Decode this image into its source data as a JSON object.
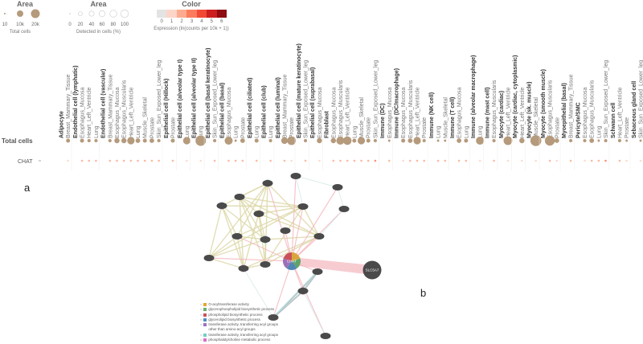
{
  "legend": {
    "total_cells": {
      "title": "Area",
      "ticks": [
        "10",
        "10k",
        "20k"
      ],
      "caption": "Total cells",
      "color": "#b59a7c"
    },
    "detected": {
      "title": "Area",
      "ticks": [
        "0",
        "20",
        "40",
        "60",
        "80",
        "100"
      ],
      "caption": "Detected in cells (%)"
    },
    "expression": {
      "title": "Color",
      "ticks": [
        "0",
        "1",
        "2",
        "3",
        "4",
        "5",
        "6"
      ],
      "caption": "Expression (ln(counts per 10k + 1))",
      "colors": [
        "#e3e3e3",
        "#fcd5c8",
        "#fcab91",
        "#fb7c5c",
        "#f04a36",
        "#cc1f1f",
        "#8e0c12"
      ]
    }
  },
  "rows": {
    "total_cells": "Total cells",
    "gene": "CHAT"
  },
  "columns": [
    {
      "label": "Adipocyte",
      "header": true
    },
    {
      "label": "Breast_Mammary_Tissue",
      "total": 3,
      "expr": 1
    },
    {
      "label": "Endothelial cell (lymphatic)",
      "header": true
    },
    {
      "label": "Esophagus_Mucosa",
      "total": 3,
      "expr": 1.5
    },
    {
      "label": "Heart_Left_Ventricle",
      "total": 2,
      "expr": 1.5
    },
    {
      "label": "Lung",
      "total": 2,
      "expr": 1.5
    },
    {
      "label": "Endothelial cell (vascular)",
      "header": true
    },
    {
      "label": "Breast_Mammary_Tissue",
      "total": 2,
      "expr": 1.5
    },
    {
      "label": "Esophagus_Mucosa",
      "total": 5,
      "expr": 1.5
    },
    {
      "label": "Esophagus_Muscularis",
      "total": 5,
      "expr": 1.5
    },
    {
      "label": "Heart_Left_Ventricle",
      "total": 10,
      "expr": 1.5
    },
    {
      "label": "Lung",
      "total": 4,
      "expr": 2
    },
    {
      "label": "Muscle_Skeletal",
      "total": 3,
      "expr": 1.5
    },
    {
      "label": "Prostate",
      "total": 4,
      "expr": 1.5
    },
    {
      "label": "Skin_Sun_Exposed_Lower_leg",
      "total": 2,
      "expr": 1.5
    },
    {
      "label": "Epithelial cell (Hillock)",
      "header": true
    },
    {
      "label": "Prostate",
      "total": 3,
      "expr": 1.5
    },
    {
      "label": "Epithelial cell (alveolar type I)",
      "header": true
    },
    {
      "label": "Lung",
      "total": 10,
      "expr": 1
    },
    {
      "label": "Epithelial cell (alveolar type II)",
      "header": true
    },
    {
      "label": "Lung",
      "total": 20,
      "expr": 1
    },
    {
      "label": "Epithelial cell (basal keratinocyte)",
      "header": true
    },
    {
      "label": "Skin_Sun_Exposed_Lower_leg",
      "total": 2,
      "expr": 2
    },
    {
      "label": "Epithelial cell (basal)",
      "header": true
    },
    {
      "label": "Esophagus_Mucosa",
      "total": 12,
      "expr": 1.5
    },
    {
      "label": "Lung",
      "total": 1,
      "expr": 1.5
    },
    {
      "label": "Prostate",
      "total": 4,
      "expr": 1.5
    },
    {
      "label": "Epithelial cell (ciliated)",
      "header": true
    },
    {
      "label": "Lung",
      "total": 3,
      "expr": 1.5
    },
    {
      "label": "Epithelial cell (club)",
      "header": true
    },
    {
      "label": "Lung",
      "total": 2,
      "expr": 1.5
    },
    {
      "label": "Epithelial cell (luminal)",
      "header": true
    },
    {
      "label": "Breast_Mammary_Tissue",
      "total": 8,
      "expr": 1.5
    },
    {
      "label": "Prostate",
      "total": 14,
      "expr": 0.8
    },
    {
      "label": "Epithelial cell (mature keratinocyte)",
      "header": true
    },
    {
      "label": "Skin_Sun_Exposed_Lower_leg",
      "total": 2,
      "expr": 1.5
    },
    {
      "label": "Epithelial cell (suprabasal)",
      "header": true
    },
    {
      "label": "Esophagus_Mucosa",
      "total": 5,
      "expr": 0.8
    },
    {
      "label": "Fibroblast",
      "header": true
    },
    {
      "label": "Esophagus_Mucosa",
      "total": 5,
      "expr": 1.5
    },
    {
      "label": "Esophagus_Muscularis",
      "total": 12,
      "expr": 1.5
    },
    {
      "label": "Heart_Left_Ventricle",
      "total": 13,
      "expr": 1.5
    },
    {
      "label": "Lung",
      "total": 3,
      "expr": 1.5
    },
    {
      "label": "Muscle_Skeletal",
      "total": 10,
      "expr": 1.5
    },
    {
      "label": "Prostate",
      "total": 3,
      "expr": 2
    },
    {
      "label": "Skin_Sun_Exposed_Lower_leg",
      "total": 2,
      "expr": 2.5
    },
    {
      "label": "Immune (DC)",
      "header": true
    },
    {
      "label": "Esophagus_Mucosa",
      "total": 1,
      "expr": 1.5
    },
    {
      "label": "Immune (DC/macrophage)",
      "header": true
    },
    {
      "label": "Esophagus_Mucosa",
      "total": 3,
      "expr": 1
    },
    {
      "label": "Esophagus_Muscularis",
      "total": 4,
      "expr": 1.5
    },
    {
      "label": "Heart_Left_Ventricle",
      "total": 10,
      "expr": 1.5
    },
    {
      "label": "Prostate",
      "total": 2,
      "expr": 1.5
    },
    {
      "label": "Immune (NK cell)",
      "header": true
    },
    {
      "label": "Lung",
      "total": 1,
      "expr": 2
    },
    {
      "label": "Muscle_Skeletal",
      "total": 1,
      "expr": 2
    },
    {
      "label": "Immune (T cell)",
      "header": true
    },
    {
      "label": "Esophagus_Mucosa",
      "total": 4,
      "expr": 1.5
    },
    {
      "label": "Lung",
      "total": 3,
      "expr": 2
    },
    {
      "label": "Immune (alveolar macrophage)",
      "header": true
    },
    {
      "label": "Lung",
      "total": 12,
      "expr": 1
    },
    {
      "label": "Immune (mast cell)",
      "header": true
    },
    {
      "label": "Esophagus_Muscularis",
      "total": 2,
      "expr": 2
    },
    {
      "label": "Myocyte (cardiac)",
      "header": true
    },
    {
      "label": "Heart_Left_Ventricle",
      "total": 14,
      "expr": 0.6
    },
    {
      "label": "Myocyte (cardiac, cytoplasmic)",
      "header": true
    },
    {
      "label": "Heart_Left_Ventricle",
      "total": 5,
      "expr": 0.8
    },
    {
      "label": "Myocyte (sk. muscle)",
      "header": true
    },
    {
      "label": "Muscle_Skeletal",
      "total": 22,
      "expr": 1
    },
    {
      "label": "Myocyte (smooth muscle)",
      "header": true
    },
    {
      "label": "Esophagus_Muscularis",
      "total": 18,
      "expr": 1.5
    },
    {
      "label": "Prostate",
      "total": 4,
      "expr": 1
    },
    {
      "label": "Myoepithelial (basal)",
      "header": true
    },
    {
      "label": "Breast_Mammary_Tissue",
      "total": 2,
      "expr": 1.5
    },
    {
      "label": "Pericyte/SMC",
      "header": true
    },
    {
      "label": "Esophagus_Mucosa",
      "total": 2,
      "expr": 0.8
    },
    {
      "label": "Esophagus_Muscularis",
      "total": 4,
      "expr": 2
    },
    {
      "label": "Lung",
      "total": 1,
      "expr": 1.5
    },
    {
      "label": "Skin_Sun_Exposed_Lower_leg",
      "total": 2,
      "expr": 2.5
    },
    {
      "label": "Schwann cell",
      "header": true
    },
    {
      "label": "Heart_Left_Ventricle",
      "total": 2,
      "expr": 1.5
    },
    {
      "label": "Prostate",
      "total": 1,
      "expr": 0.8
    },
    {
      "label": "Sebaceous gland cell",
      "header": true
    },
    {
      "label": "Skin_Sun_Exposed_Lower_leg",
      "total": 1,
      "expr": 1
    }
  ],
  "panels": {
    "a": "a",
    "b": "b"
  },
  "network": {
    "nodes": [
      {
        "label": "CHAT",
        "hub": true,
        "colors": [
          "#d9a53a",
          "#5fa36b",
          "#4f86b6",
          "#9c6fb8",
          "#c9515b"
        ]
      },
      {
        "label": "SLC5A7",
        "large": true
      }
    ],
    "edge_colors": {
      "coexpression": "#dcd7a6",
      "physical": "#f4b6bd",
      "pathway": "#a9d5d9"
    }
  },
  "go_legend": [
    {
      "label": "O-acyltransferase activity",
      "color": "#e8a531"
    },
    {
      "label": "glycerophospholipid biosynthetic process",
      "color": "#67b06c"
    },
    {
      "label": "phospholipid biosynthetic process",
      "color": "#c9515b"
    },
    {
      "label": "glycerolipid biosynthetic process",
      "color": "#4f8fc4"
    },
    {
      "label": "transferase activity, transferring acyl groups other than amino-acyl groups",
      "color": "#9a71c6"
    },
    {
      "label": "transferase activity, transferring acyl groups",
      "color": "#6fcfc4"
    },
    {
      "label": "phosphatidylcholine metabolic process",
      "color": "#d86fc4"
    }
  ]
}
